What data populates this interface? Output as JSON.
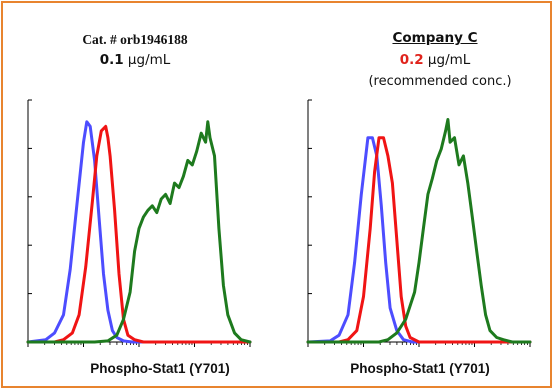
{
  "colors": {
    "border": "#e8842f",
    "blue": "#4d4dff",
    "red": "#f01414",
    "green": "#1e7a1e",
    "highlight": "#e0231c"
  },
  "left_header": {
    "cat": "Cat. # orb1946188",
    "conc_value": "0.1",
    "conc_unit": "µg/mL"
  },
  "right_header": {
    "company": "Company C",
    "conc_value": "0.2",
    "conc_unit": "µg/mL",
    "note": "(recommended conc.)"
  },
  "chart_data": [
    {
      "type": "line",
      "title": "",
      "xlabel": "Phospho-Stat1 (Y701)",
      "ylabel": "",
      "xlim": [
        0,
        1
      ],
      "ylim": [
        0,
        1
      ],
      "grid": false,
      "legend": "none",
      "series": [
        {
          "color": "#4d4dff",
          "x": [
            0,
            0.08,
            0.12,
            0.16,
            0.19,
            0.22,
            0.25,
            0.265,
            0.28,
            0.3,
            0.32,
            0.34,
            0.36,
            0.38,
            0.4,
            0.43,
            0.47,
            0.52,
            0.6,
            0.8,
            1
          ],
          "y": [
            0,
            0.01,
            0.04,
            0.12,
            0.32,
            0.6,
            0.88,
            0.97,
            0.95,
            0.8,
            0.55,
            0.3,
            0.14,
            0.05,
            0.02,
            0.005,
            0,
            0,
            0,
            0,
            0
          ]
        },
        {
          "color": "#f01414",
          "x": [
            0,
            0.12,
            0.16,
            0.2,
            0.23,
            0.26,
            0.29,
            0.31,
            0.33,
            0.35,
            0.36,
            0.37,
            0.39,
            0.41,
            0.43,
            0.45,
            0.48,
            0.52,
            0.6,
            0.8,
            1
          ],
          "y": [
            0,
            0,
            0.01,
            0.04,
            0.12,
            0.33,
            0.62,
            0.82,
            0.93,
            0.95,
            0.9,
            0.82,
            0.58,
            0.3,
            0.1,
            0.03,
            0.01,
            0,
            0,
            0,
            0
          ]
        },
        {
          "color": "#1e7a1e",
          "x": [
            0,
            0.3,
            0.36,
            0.4,
            0.43,
            0.46,
            0.48,
            0.5,
            0.52,
            0.54,
            0.56,
            0.58,
            0.6,
            0.62,
            0.64,
            0.66,
            0.68,
            0.7,
            0.72,
            0.74,
            0.76,
            0.78,
            0.8,
            0.81,
            0.82,
            0.84,
            0.86,
            0.88,
            0.9,
            0.93,
            0.96,
            1
          ],
          "y": [
            0,
            0,
            0.005,
            0.03,
            0.1,
            0.22,
            0.4,
            0.5,
            0.55,
            0.58,
            0.6,
            0.57,
            0.63,
            0.65,
            0.61,
            0.7,
            0.68,
            0.73,
            0.8,
            0.78,
            0.84,
            0.92,
            0.88,
            0.97,
            0.9,
            0.82,
            0.5,
            0.25,
            0.12,
            0.04,
            0.01,
            0
          ]
        }
      ]
    },
    {
      "type": "line",
      "title": "",
      "xlabel": "Phospho-Stat1 (Y701)",
      "ylabel": "",
      "xlim": [
        0,
        1
      ],
      "ylim": [
        0,
        1
      ],
      "grid": false,
      "legend": "none",
      "series": [
        {
          "color": "#4d4dff",
          "x": [
            0,
            0.1,
            0.14,
            0.18,
            0.21,
            0.24,
            0.27,
            0.29,
            0.31,
            0.33,
            0.35,
            0.37,
            0.4,
            0.43,
            0.47,
            0.52,
            0.6,
            0.8,
            1
          ],
          "y": [
            0,
            0.005,
            0.03,
            0.12,
            0.35,
            0.65,
            0.9,
            0.9,
            0.82,
            0.6,
            0.35,
            0.15,
            0.05,
            0.01,
            0,
            0,
            0,
            0,
            0
          ]
        },
        {
          "color": "#f01414",
          "x": [
            0,
            0.14,
            0.18,
            0.22,
            0.25,
            0.28,
            0.3,
            0.32,
            0.34,
            0.36,
            0.38,
            0.4,
            0.42,
            0.44,
            0.46,
            0.5,
            0.55,
            0.6,
            0.8,
            1
          ],
          "y": [
            0,
            0,
            0.01,
            0.05,
            0.2,
            0.5,
            0.75,
            0.9,
            0.9,
            0.82,
            0.7,
            0.45,
            0.2,
            0.07,
            0.02,
            0,
            0,
            0,
            0,
            0
          ]
        },
        {
          "color": "#1e7a1e",
          "x": [
            0,
            0.32,
            0.36,
            0.4,
            0.44,
            0.48,
            0.5,
            0.52,
            0.54,
            0.56,
            0.58,
            0.6,
            0.62,
            0.63,
            0.64,
            0.66,
            0.68,
            0.7,
            0.72,
            0.74,
            0.76,
            0.78,
            0.8,
            0.82,
            0.85,
            0.88,
            0.92,
            1
          ],
          "y": [
            0,
            0,
            0.01,
            0.04,
            0.1,
            0.22,
            0.35,
            0.5,
            0.65,
            0.72,
            0.8,
            0.85,
            0.93,
            0.98,
            0.88,
            0.9,
            0.78,
            0.82,
            0.7,
            0.55,
            0.4,
            0.25,
            0.12,
            0.05,
            0.02,
            0.01,
            0,
            0
          ]
        }
      ]
    }
  ]
}
